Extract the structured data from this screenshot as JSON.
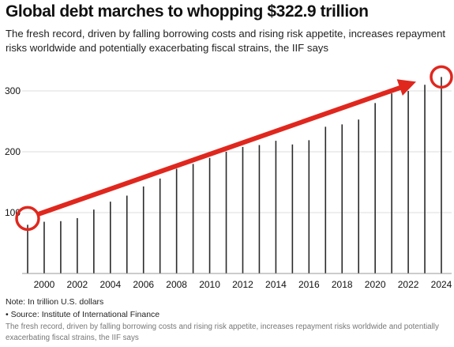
{
  "title": "Global debt marches to whopping $322.9 trillion",
  "subtitle": "The fresh record, driven by falling borrowing costs and rising risk appetite, increases repayment risks worldwide and potentially exacerbating fiscal strains, the IIF says",
  "note": "Note: In trillion U.S. dollars",
  "source": "• Source: Institute of International Finance",
  "caption": "The fresh record, driven by falling borrowing costs and rising risk appetite, increases repayment risks worldwide and potentially exacerbating fiscal strains, the IIF says",
  "colors": {
    "bar": "#2a2a2a",
    "grid": "#dddddd",
    "arrow": "#e0271e",
    "text": "#111111"
  },
  "chart_data": {
    "type": "bar",
    "x": [
      1999,
      2000,
      2001,
      2002,
      2003,
      2004,
      2005,
      2006,
      2007,
      2008,
      2009,
      2010,
      2011,
      2012,
      2013,
      2014,
      2015,
      2016,
      2017,
      2018,
      2019,
      2020,
      2021,
      2022,
      2023,
      2024
    ],
    "values": [
      80,
      85,
      86,
      91,
      105,
      118,
      128,
      143,
      156,
      172,
      180,
      190,
      200,
      208,
      211,
      218,
      212,
      219,
      241,
      245,
      253,
      280,
      296,
      300,
      310,
      322.9
    ],
    "xticks": [
      "2000",
      "2002",
      "2004",
      "2006",
      "2008",
      "2010",
      "2012",
      "2014",
      "2016",
      "2018",
      "2020",
      "2022",
      "2024"
    ],
    "yticks": [
      "100",
      "200",
      "300"
    ],
    "ylim": [
      0,
      330
    ],
    "grid": true,
    "annotations": [
      "red circle at 1999",
      "red arrow from 1999 to 2024",
      "red circle at 2024"
    ]
  }
}
